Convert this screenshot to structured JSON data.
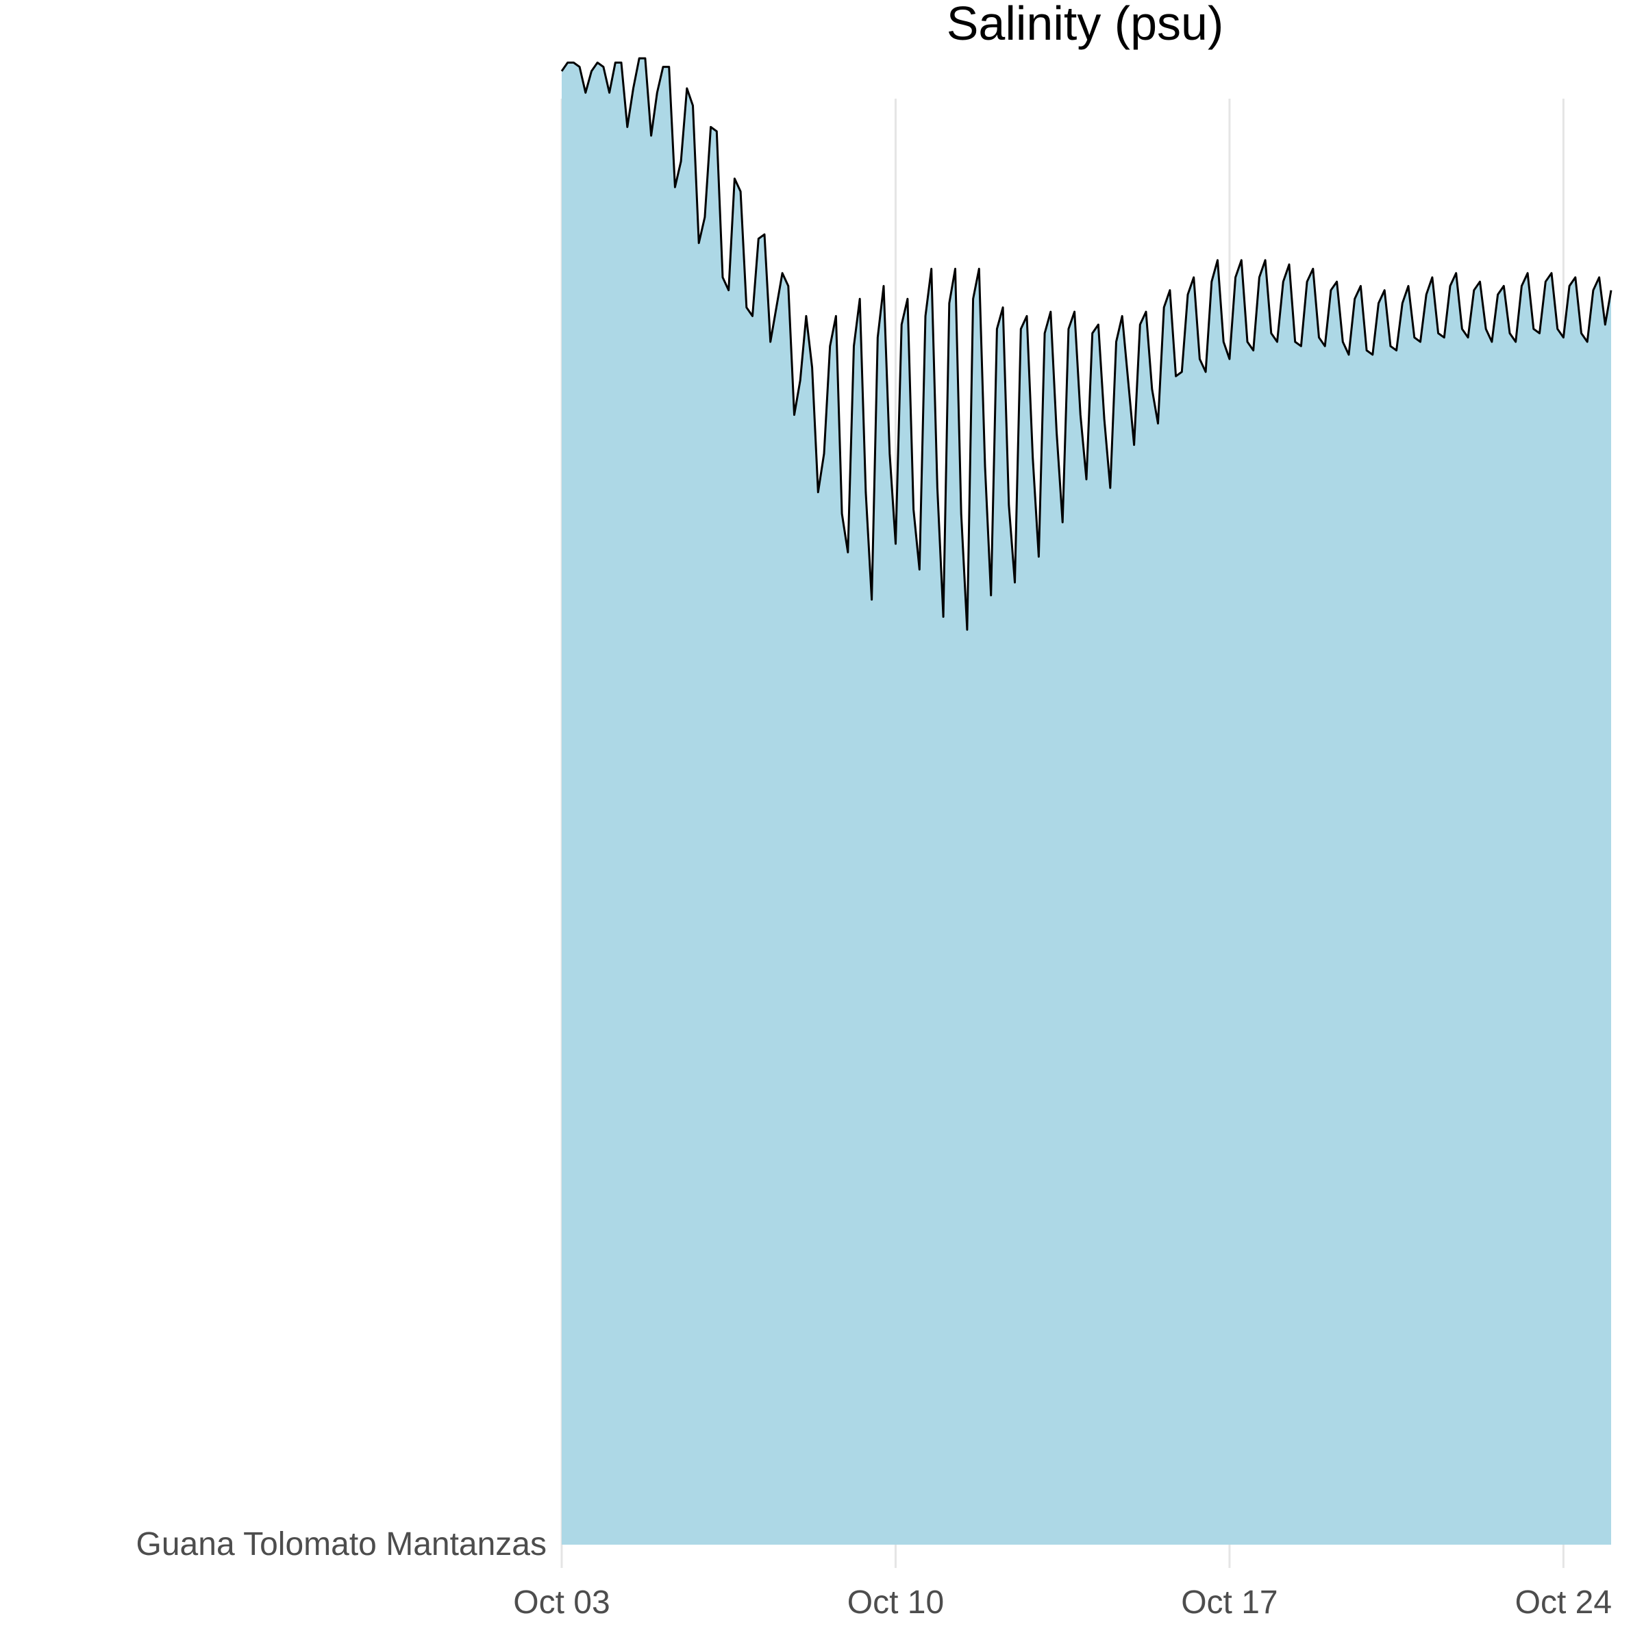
{
  "chart_data": {
    "type": "area",
    "title": "Salinity (psu)",
    "category_label": "Guana Tolomato Mantanzas",
    "x_ticks": [
      "Oct 03",
      "Oct 10",
      "Oct 17",
      "Oct 24"
    ],
    "x_tick_dates": [
      "Oct 03",
      "Oct 10",
      "Oct 17",
      "Oct 24"
    ],
    "xlim": [
      "Oct 03",
      "Oct 25"
    ],
    "ylim": [
      0,
      35
    ],
    "grid": "vertical major only",
    "legend": "none",
    "colors": {
      "fill": "#add8e6",
      "line": "#000000",
      "grid": "#e5e5e5",
      "label": "#4d4d4d"
    },
    "series": [
      {
        "x": [
          "Oct 03 00:00",
          "Oct 03 03:00",
          "Oct 03 06:00",
          "Oct 03 09:00",
          "Oct 03 12:00",
          "Oct 03 15:00",
          "Oct 03 18:00",
          "Oct 03 21:00",
          "Oct 04 00:00",
          "Oct 04 03:00",
          "Oct 04 06:00",
          "Oct 04 09:00",
          "Oct 04 12:00",
          "Oct 04 15:00",
          "Oct 04 18:00",
          "Oct 04 21:00",
          "Oct 05 00:00",
          "Oct 05 03:00",
          "Oct 05 06:00",
          "Oct 05 09:00",
          "Oct 05 12:00",
          "Oct 05 15:00",
          "Oct 05 18:00",
          "Oct 05 21:00",
          "Oct 06 00:00",
          "Oct 06 03:00",
          "Oct 06 06:00",
          "Oct 06 09:00",
          "Oct 06 12:00",
          "Oct 06 15:00",
          "Oct 06 18:00",
          "Oct 06 21:00",
          "Oct 07 00:00",
          "Oct 07 03:00",
          "Oct 07 06:00",
          "Oct 07 09:00",
          "Oct 07 12:00",
          "Oct 07 15:00",
          "Oct 07 18:00",
          "Oct 07 21:00",
          "Oct 08 00:00",
          "Oct 08 03:00",
          "Oct 08 06:00",
          "Oct 08 09:00",
          "Oct 08 12:00",
          "Oct 08 15:00",
          "Oct 08 18:00",
          "Oct 08 21:00",
          "Oct 09 00:00",
          "Oct 09 03:00",
          "Oct 09 06:00",
          "Oct 09 09:00",
          "Oct 09 12:00",
          "Oct 09 15:00",
          "Oct 09 18:00",
          "Oct 09 21:00",
          "Oct 10 00:00",
          "Oct 10 03:00",
          "Oct 10 06:00",
          "Oct 10 09:00",
          "Oct 10 12:00",
          "Oct 10 15:00",
          "Oct 10 18:00",
          "Oct 10 21:00",
          "Oct 11 00:00",
          "Oct 11 03:00",
          "Oct 11 06:00",
          "Oct 11 09:00",
          "Oct 11 12:00",
          "Oct 11 15:00",
          "Oct 11 18:00",
          "Oct 11 21:00",
          "Oct 12 00:00",
          "Oct 12 03:00",
          "Oct 12 06:00",
          "Oct 12 09:00",
          "Oct 12 12:00",
          "Oct 12 15:00",
          "Oct 12 18:00",
          "Oct 12 21:00",
          "Oct 13 00:00",
          "Oct 13 03:00",
          "Oct 13 06:00",
          "Oct 13 09:00",
          "Oct 13 12:00",
          "Oct 13 15:00",
          "Oct 13 18:00",
          "Oct 13 21:00",
          "Oct 14 00:00",
          "Oct 14 03:00",
          "Oct 14 06:00",
          "Oct 14 09:00",
          "Oct 14 12:00",
          "Oct 14 15:00",
          "Oct 14 18:00",
          "Oct 14 21:00",
          "Oct 15 00:00",
          "Oct 15 03:00",
          "Oct 15 06:00",
          "Oct 15 09:00",
          "Oct 15 12:00",
          "Oct 15 15:00",
          "Oct 15 18:00",
          "Oct 15 21:00",
          "Oct 16 00:00",
          "Oct 16 03:00",
          "Oct 16 06:00",
          "Oct 16 09:00",
          "Oct 16 12:00",
          "Oct 16 15:00",
          "Oct 16 18:00",
          "Oct 16 21:00",
          "Oct 17 00:00",
          "Oct 17 03:00",
          "Oct 17 06:00",
          "Oct 17 09:00",
          "Oct 17 12:00",
          "Oct 17 15:00",
          "Oct 17 18:00",
          "Oct 17 21:00",
          "Oct 18 00:00",
          "Oct 18 03:00",
          "Oct 18 06:00",
          "Oct 18 09:00",
          "Oct 18 12:00",
          "Oct 18 15:00",
          "Oct 18 18:00",
          "Oct 18 21:00",
          "Oct 19 00:00",
          "Oct 19 03:00",
          "Oct 19 06:00",
          "Oct 19 09:00",
          "Oct 19 12:00",
          "Oct 19 15:00",
          "Oct 19 18:00",
          "Oct 19 21:00",
          "Oct 20 00:00",
          "Oct 20 03:00",
          "Oct 20 06:00",
          "Oct 20 09:00",
          "Oct 20 12:00",
          "Oct 20 15:00",
          "Oct 20 18:00",
          "Oct 20 21:00",
          "Oct 21 00:00",
          "Oct 21 03:00",
          "Oct 21 06:00",
          "Oct 21 09:00",
          "Oct 21 12:00",
          "Oct 21 15:00",
          "Oct 21 18:00",
          "Oct 21 21:00",
          "Oct 22 00:00",
          "Oct 22 03:00",
          "Oct 22 06:00",
          "Oct 22 09:00",
          "Oct 22 12:00",
          "Oct 22 15:00",
          "Oct 22 18:00",
          "Oct 22 21:00",
          "Oct 23 00:00",
          "Oct 23 03:00",
          "Oct 23 06:00",
          "Oct 23 09:00",
          "Oct 23 12:00",
          "Oct 23 15:00",
          "Oct 23 18:00",
          "Oct 23 21:00",
          "Oct 24 00:00",
          "Oct 24 03:00",
          "Oct 24 06:00",
          "Oct 24 09:00",
          "Oct 24 12:00",
          "Oct 24 15:00",
          "Oct 24 18:00",
          "Oct 24 21:00",
          "Oct 25 00:00"
        ],
        "values": [
          34.3,
          34.5,
          34.5,
          34.4,
          33.8,
          34.3,
          34.5,
          34.4,
          33.8,
          34.5,
          34.5,
          33.0,
          33.9,
          34.6,
          34.6,
          32.8,
          33.8,
          34.4,
          34.4,
          31.6,
          32.2,
          33.9,
          33.5,
          30.3,
          30.9,
          33.0,
          32.9,
          29.5,
          29.2,
          31.8,
          31.5,
          28.8,
          28.6,
          30.4,
          30.5,
          28.0,
          28.8,
          29.6,
          29.3,
          26.3,
          27.1,
          28.6,
          27.4,
          24.5,
          25.4,
          27.9,
          28.6,
          24.0,
          23.1,
          27.9,
          29.0,
          24.5,
          22.0,
          28.1,
          29.3,
          25.4,
          23.3,
          28.4,
          29.0,
          24.1,
          22.7,
          28.6,
          29.7,
          24.6,
          21.6,
          28.9,
          29.7,
          24.0,
          21.3,
          29.0,
          29.7,
          25.1,
          22.1,
          28.3,
          28.8,
          24.2,
          22.4,
          28.3,
          28.6,
          25.3,
          23.0,
          28.2,
          28.7,
          25.9,
          23.8,
          28.3,
          28.7,
          26.3,
          24.8,
          28.2,
          28.4,
          26.2,
          24.6,
          28.0,
          28.6,
          27.1,
          25.6,
          28.4,
          28.7,
          26.9,
          26.1,
          28.8,
          29.2,
          27.2,
          27.3,
          29.1,
          29.5,
          27.6,
          27.3,
          29.4,
          29.9,
          28.0,
          27.6,
          29.5,
          29.9,
          28.0,
          27.8,
          29.5,
          29.9,
          28.2,
          28.0,
          29.4,
          29.8,
          28.0,
          27.9,
          29.4,
          29.7,
          28.1,
          27.9,
          29.2,
          29.4,
          28.0,
          27.7,
          29.0,
          29.3,
          27.8,
          27.7,
          28.9,
          29.2,
          27.9,
          27.8,
          28.9,
          29.3,
          28.1,
          28.0,
          29.1,
          29.5,
          28.2,
          28.1,
          29.3,
          29.6,
          28.3,
          28.1,
          29.2,
          29.4,
          28.3,
          28.0,
          29.1,
          29.3,
          28.2,
          28.0,
          29.3,
          29.6,
          28.3,
          28.2,
          29.4,
          29.6,
          28.3,
          28.1,
          29.3,
          29.5,
          28.2,
          28.0,
          29.2,
          29.5,
          28.4,
          29.2
        ]
      }
    ]
  }
}
